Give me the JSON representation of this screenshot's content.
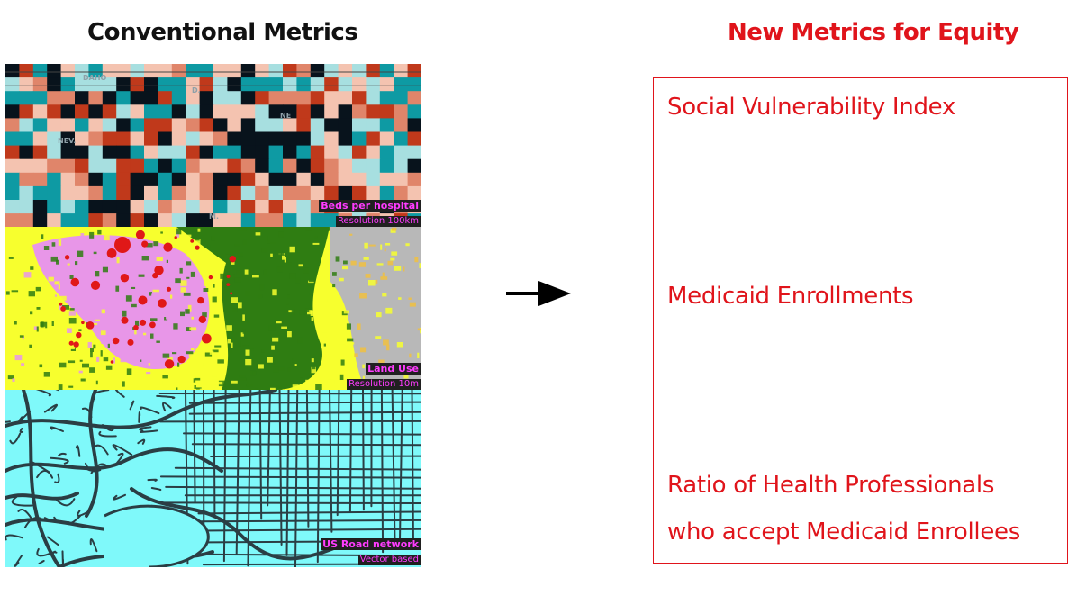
{
  "left_title": "Conventional Metrics",
  "right_title": "New Metrics for Equity",
  "panels": {
    "beds": {
      "label": "Beds per hospital",
      "sublabel": "Resolution 100km",
      "map_text": [
        "DAHO",
        "NEV.",
        "D.",
        "NE",
        "M."
      ]
    },
    "land": {
      "label": "Land Use",
      "sublabel": "Resolution 10m"
    },
    "road": {
      "label": "US Road network",
      "sublabel": "Vector based"
    }
  },
  "metrics": [
    {
      "lines": [
        "Social Vulnerability Index"
      ]
    },
    {
      "lines": [
        "Medicaid Enrollments"
      ]
    },
    {
      "lines": [
        "Ratio of Health Professionals",
        "who accept Medicaid Enrollees"
      ]
    }
  ],
  "colors": {
    "accent_red": "#e0141b",
    "grid_palette": [
      "#08131c",
      "#0e9aa3",
      "#a7dfe0",
      "#f4c3b0",
      "#e0856a",
      "#c0391b"
    ],
    "land_palette": [
      "#f7ff2e",
      "#2f7d12",
      "#e896e8",
      "#b8b8b8",
      "#e01818",
      "#f0c040"
    ],
    "road_fill": "#7ff9fa",
    "road_line": "#2a3e44"
  }
}
